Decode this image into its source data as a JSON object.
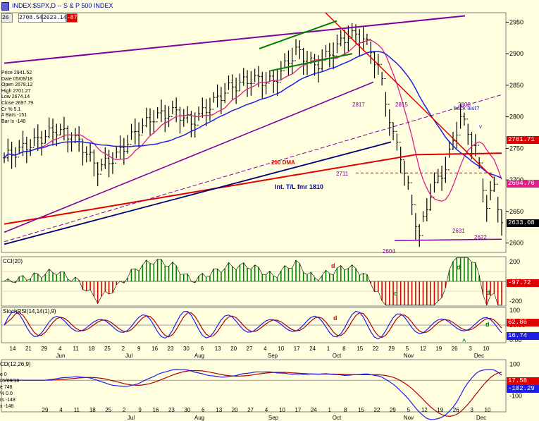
{
  "header": {
    "symbol": "INDEX:$SPX,D -- S & P 500 INDEX",
    "period": "26",
    "price_cells": [
      "2708.54",
      "2623.14",
      "-87"
    ]
  },
  "info_box": [
    "Price 2941.52",
    "Date 05/09/18",
    "Open 2678.12",
    "High 2701.27",
    "Low 2674.14",
    "Close 2697.79",
    "Cr % 5.1",
    "# Bars -151",
    "Bar Ix -148"
  ],
  "panels": {
    "cci_title": "CCI(20)",
    "stoch_title": "StochRSI(14,14(1),9)",
    "macd_title": "CD(12,26,9)",
    "macd_info": [
      "e 0",
      "05/09/18",
      "e 748",
      "% 0.0",
      "rs -148",
      "x -148"
    ]
  },
  "colors": {
    "bg": "#ffffe0",
    "price_line": "#1e1ee6",
    "red": "#e00000",
    "purple": "#8000a0",
    "navy": "#00007a",
    "pink": "#e01e8c",
    "green": "#008000"
  },
  "chart_data": [
    {
      "type": "candlestick",
      "title": "INDEX:$SPX,D -- S & P 500 INDEX",
      "ylim": [
        2585,
        2965
      ],
      "yticks": [
        2600,
        2650,
        2700,
        2750,
        2800,
        2850,
        2900,
        2950
      ],
      "price_tags": [
        {
          "value": "2761.71",
          "color": "#e00000"
        },
        {
          "value": "2694.76",
          "color": "#e01e8c"
        },
        {
          "value": "2633.08",
          "color": "#000000"
        }
      ],
      "annotations": [
        {
          "text": "200 DMA",
          "color": "#e00000"
        },
        {
          "text": "Int. T/L fmr 1810",
          "color": "#0000c0"
        },
        {
          "text": "back test?",
          "color": "#1e1ee6"
        },
        {
          "text": "v",
          "color": "#1e1ee6"
        },
        {
          "text": "2817",
          "color": "#8000a0"
        },
        {
          "text": "2815",
          "color": "#8000a0"
        },
        {
          "text": "2800",
          "color": "#8000a0"
        },
        {
          "text": "2711",
          "color": "#8000a0"
        },
        {
          "text": "2604",
          "color": "#8000a0"
        },
        {
          "text": "2631",
          "color": "#8000a0"
        },
        {
          "text": "2622",
          "color": "#8000a0"
        }
      ]
    },
    {
      "type": "bar",
      "title": "CCI(20)",
      "ylim": [
        -250,
        250
      ],
      "yticks": [
        "200",
        "0.00",
        "-200"
      ],
      "price_tag": {
        "value": "-97.72",
        "color": "#e00000"
      },
      "annotations": [
        {
          "text": "d",
          "color": "#e00000"
        },
        {
          "text": "d",
          "color": "#008000"
        },
        {
          "text": "d",
          "color": "#008000"
        },
        {
          "text": "d",
          "color": "#008000"
        }
      ]
    },
    {
      "type": "line",
      "title": "StochRSI(14,14(1),9)",
      "ylim": [
        -10,
        110
      ],
      "yticks": [
        "100",
        "50.00",
        "0.00"
      ],
      "price_tags": [
        {
          "value": "62.86",
          "color": "#e00000"
        },
        {
          "value": "16.74",
          "color": "#1e1ee6"
        }
      ],
      "annotations": [
        {
          "text": "d",
          "color": "#e00000"
        },
        {
          "text": "^",
          "color": "#008000"
        },
        {
          "text": "d",
          "color": "#008000"
        }
      ]
    },
    {
      "type": "line",
      "title": "CD(12,26,9)",
      "ylim": [
        -200,
        130
      ],
      "yticks": [
        "100",
        "0.00",
        "-100"
      ],
      "price_tags": [
        {
          "value": "17.58",
          "color": "#e00000"
        },
        {
          "value": "-102.29",
          "color": "#1e1ee6"
        }
      ]
    }
  ],
  "x_axis": {
    "day_labels_top": [
      "14",
      "21",
      "29",
      "4",
      "11",
      "18",
      "25",
      "2",
      "9",
      "16",
      "23",
      "30",
      "6",
      "13",
      "20",
      "27",
      "4",
      "10",
      "17",
      "24",
      "1",
      "8",
      "15",
      "22",
      "29",
      "5",
      "12",
      "19",
      "26",
      "3",
      "10"
    ],
    "month_labels_top": [
      "Jun",
      "Jul",
      "Aug",
      "Sep",
      "Oct",
      "Nov",
      "Dec"
    ],
    "day_labels_bottom": [
      "29",
      "4",
      "11",
      "18",
      "25",
      "2",
      "9",
      "16",
      "23",
      "30",
      "6",
      "13",
      "20",
      "27",
      "4",
      "10",
      "17",
      "24",
      "1",
      "8",
      "15",
      "22",
      "29",
      "5",
      "12",
      "19",
      "26",
      "3",
      "10"
    ],
    "month_labels_bottom": [
      "Jul",
      "Aug",
      "Sep",
      "Oct",
      "Nov",
      "Dec"
    ]
  }
}
